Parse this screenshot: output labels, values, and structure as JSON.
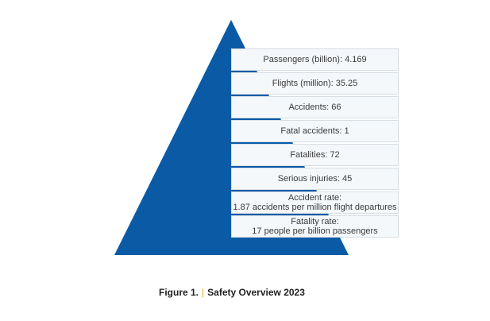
{
  "colors": {
    "pyramid": "#0a5aa6",
    "panel": "#f4f8fb",
    "caption_separator": "#e3a51a"
  },
  "levels": [
    {
      "lines": [
        "Passengers (billion): 4.169"
      ]
    },
    {
      "lines": [
        "Flights (million): 35.25"
      ]
    },
    {
      "lines": [
        "Accidents: 66"
      ]
    },
    {
      "lines": [
        "Fatal accidents: 1"
      ]
    },
    {
      "lines": [
        "Fatalities: 72"
      ]
    },
    {
      "lines": [
        "Serious injuries: 45"
      ]
    },
    {
      "lines": [
        "Accident rate:",
        "1.87 accidents per million flight departures"
      ]
    },
    {
      "lines": [
        "Fatality rate:",
        "17 people per billion passengers"
      ]
    }
  ],
  "caption": {
    "figure": "Figure 1.",
    "separator": "|",
    "title": "Safety Overview 2023"
  }
}
